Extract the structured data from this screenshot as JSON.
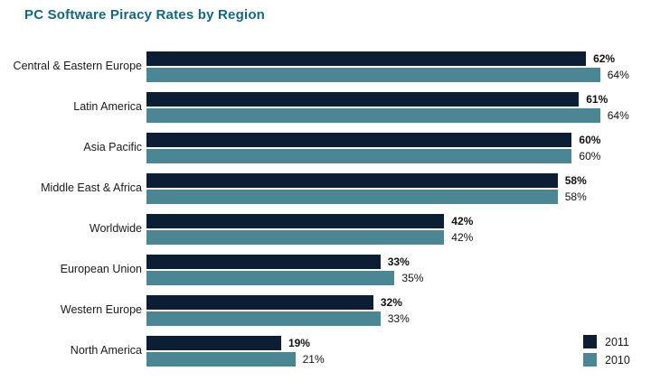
{
  "header": {
    "title": "PC Software Piracy Rates by Region"
  },
  "colors": {
    "title_text": "#12697d",
    "bar_2011": "#0b1e33",
    "bar_2010": "#4a8694",
    "value_text": "#111111",
    "category_text": "#1a1a1a",
    "background": "#ffffff"
  },
  "chart_data": {
    "type": "bar",
    "orientation": "horizontal",
    "title": "PC Software Piracy Rates by Region",
    "unit": "%",
    "categories": [
      "Central & Eastern Europe",
      "Latin America",
      "Asia Pacific",
      "Middle East & Africa",
      "Worldwide",
      "European Union",
      "Western Europe",
      "North America"
    ],
    "series": [
      {
        "name": "2011",
        "color": "#0b1e33",
        "values": [
          62,
          61,
          60,
          58,
          42,
          33,
          32,
          19
        ]
      },
      {
        "name": "2010",
        "color": "#4a8694",
        "values": [
          64,
          64,
          60,
          58,
          42,
          35,
          33,
          21
        ]
      }
    ],
    "xlim": [
      0,
      100
    ],
    "grid": false,
    "value_labels": true,
    "legend_position": "bottom-right"
  },
  "legend": {
    "entries": [
      {
        "label": "2011",
        "color": "#0b1e33"
      },
      {
        "label": "2010",
        "color": "#4a8694"
      }
    ]
  }
}
